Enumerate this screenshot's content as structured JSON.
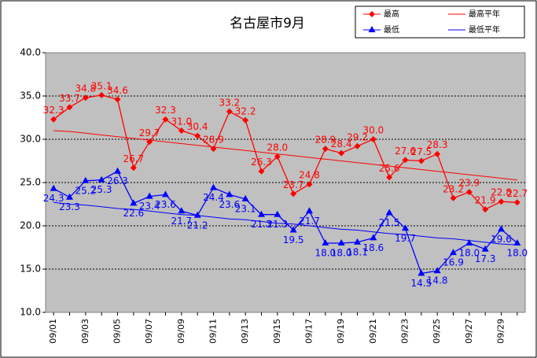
{
  "chart_data": {
    "type": "line",
    "title": "名古屋市9月",
    "categories": [
      "09/01",
      null,
      "09/03",
      null,
      "09/05",
      null,
      "09/07",
      null,
      "09/09",
      null,
      "09/11",
      null,
      "09/13",
      null,
      "09/15",
      null,
      "09/17",
      null,
      "09/19",
      null,
      "09/21",
      null,
      "09/23",
      null,
      "09/25",
      null,
      "09/27",
      null,
      "09/29",
      null
    ],
    "series": [
      {
        "name": "最高",
        "color": "#ff0000",
        "marker": "diamond",
        "values": [
          32.3,
          33.7,
          34.8,
          35.1,
          34.6,
          26.7,
          29.7,
          32.3,
          31.0,
          30.4,
          28.9,
          33.2,
          32.2,
          26.3,
          28.0,
          23.7,
          24.8,
          28.9,
          28.4,
          29.2,
          30.0,
          25.6,
          27.6,
          27.5,
          28.3,
          23.2,
          23.9,
          21.9,
          22.8,
          22.7
        ],
        "value_labels": [
          "32.3",
          "33.7",
          "34.8",
          "35.1",
          "34.6",
          "26.7",
          "29.7",
          "32.3",
          "31.0",
          "30.4",
          "28.9",
          "33.2",
          "32.2",
          "26.3",
          "28.0",
          "23.7",
          "24.8",
          "28.9",
          "28.4",
          "29.2",
          "30.0",
          "25.6",
          "27.6",
          "27.5",
          "28.3",
          "23.2",
          "23.9",
          "21.9",
          "22.8",
          "22.7"
        ]
      },
      {
        "name": "最高平年",
        "color": "#ff0000",
        "values": [
          31.0,
          30.9,
          30.7,
          30.5,
          30.3,
          30.1,
          29.9,
          29.7,
          29.5,
          29.3,
          29.1,
          28.9,
          28.7,
          28.5,
          28.3,
          28.1,
          27.9,
          27.7,
          27.5,
          27.3,
          27.1,
          26.9,
          26.7,
          26.5,
          26.3,
          26.1,
          25.9,
          25.7,
          25.5,
          25.3
        ]
      },
      {
        "name": "最低",
        "color": "#0000ff",
        "marker": "triangle",
        "values": [
          24.3,
          23.3,
          25.2,
          25.3,
          26.3,
          22.6,
          23.4,
          23.6,
          21.7,
          21.2,
          24.4,
          23.6,
          23.1,
          21.3,
          21.3,
          19.5,
          21.7,
          18.0,
          18.0,
          18.1,
          18.6,
          21.5,
          19.7,
          14.5,
          14.8,
          16.9,
          18.0,
          17.3,
          19.6,
          18.0
        ],
        "value_labels": [
          "24.3",
          "23.3",
          "25.2",
          "25.3",
          "26.3",
          "22.6",
          "23.4",
          "23.6",
          "21.7",
          "21.2",
          "24.4",
          "23.6",
          "23.1",
          "21.3",
          "21.3",
          "19.5",
          "21.7",
          "18.0",
          "18.0",
          "18.1",
          "18.6",
          "21.5",
          "19.7",
          "14.5",
          "14.8",
          "16.9",
          "18.0",
          "17.3",
          "19.6",
          "18.0"
        ]
      },
      {
        "name": "最低平年",
        "color": "#0000ff",
        "values": [
          22.7,
          22.5,
          22.4,
          22.2,
          22.0,
          21.9,
          21.7,
          21.5,
          21.3,
          21.2,
          21.0,
          20.8,
          20.7,
          20.5,
          20.3,
          20.2,
          20.0,
          19.8,
          19.6,
          19.5,
          19.3,
          19.1,
          19.0,
          18.8,
          18.6,
          18.5,
          18.3,
          18.1,
          17.9,
          17.8
        ]
      }
    ],
    "ylim": [
      10,
      40
    ],
    "yticks": [
      {
        "value": 10,
        "label": "10.0"
      },
      {
        "value": 15,
        "label": "15.0"
      },
      {
        "value": 20,
        "label": "20.0"
      },
      {
        "value": 25,
        "label": "25.0"
      },
      {
        "value": 30,
        "label": "30.0"
      },
      {
        "value": 35,
        "label": "35.0"
      },
      {
        "value": 40,
        "label": "40.0"
      }
    ],
    "grid": true,
    "legend": "top-right"
  }
}
